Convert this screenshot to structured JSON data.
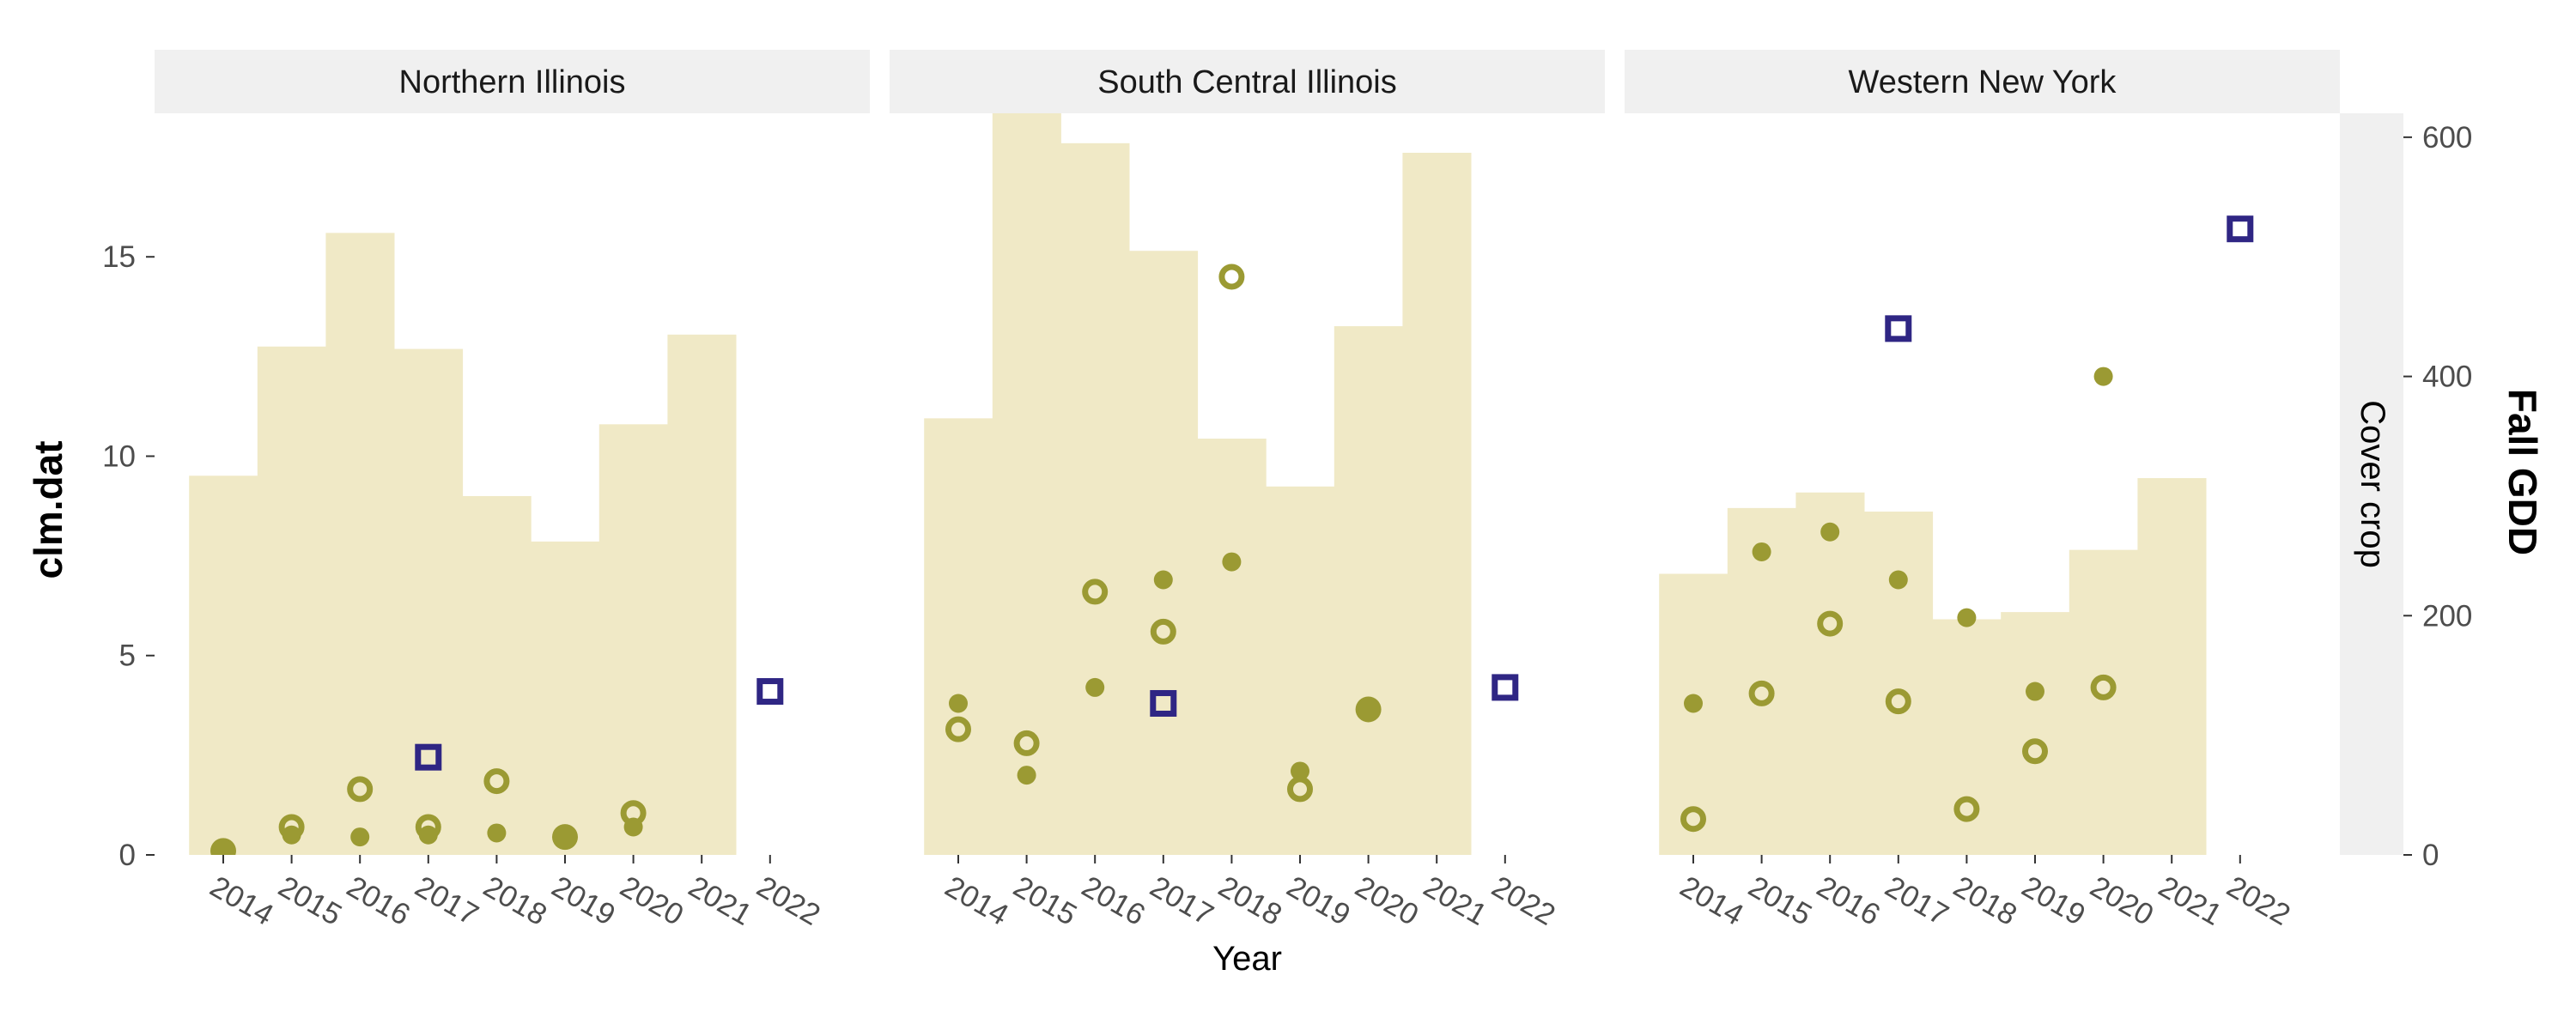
{
  "chart_data": {
    "type": "bar",
    "xlabel": "Year",
    "ylabel_left": "clm.dat",
    "ylabel_right": "Fall GDD",
    "facet_row_label": "Cover crop",
    "years": [
      "2014",
      "2015",
      "2016",
      "2017",
      "2018",
      "2019",
      "2020",
      "2021",
      "2022"
    ],
    "ylim_left": [
      0,
      18.6
    ],
    "left_ticks": [
      0,
      5,
      10,
      15
    ],
    "right_ticks": [
      0,
      200,
      400,
      600
    ],
    "right_to_left_ratio": 0.03,
    "colors": {
      "bars": "#f0e9c6",
      "olive": "#9b9a33",
      "navy": "#2f2684",
      "strip": "#f0f0f0"
    },
    "panels": [
      {
        "title": "Northern Illinois",
        "gdd_bars": [
          {
            "year": "2014",
            "value": 317
          },
          {
            "year": "2015",
            "value": 425
          },
          {
            "year": "2016",
            "value": 520
          },
          {
            "year": "2017",
            "value": 423
          },
          {
            "year": "2018",
            "value": 300
          },
          {
            "year": "2019",
            "value": 262
          },
          {
            "year": "2020",
            "value": 360
          },
          {
            "year": "2021",
            "value": 435
          }
        ],
        "points": [
          {
            "year": "2014",
            "value": 0.1,
            "style": "filled",
            "size": "large"
          },
          {
            "year": "2015",
            "value": 0.7,
            "style": "ring"
          },
          {
            "year": "2015",
            "value": 0.5,
            "style": "filled",
            "size": "small"
          },
          {
            "year": "2016",
            "value": 1.65,
            "style": "ring"
          },
          {
            "year": "2016",
            "value": 0.45,
            "style": "filled",
            "size": "small"
          },
          {
            "year": "2017",
            "value": 2.45,
            "style": "square"
          },
          {
            "year": "2017",
            "value": 0.7,
            "style": "ring"
          },
          {
            "year": "2017",
            "value": 0.5,
            "style": "filled",
            "size": "small"
          },
          {
            "year": "2018",
            "value": 1.85,
            "style": "ring"
          },
          {
            "year": "2018",
            "value": 0.55,
            "style": "filled",
            "size": "small"
          },
          {
            "year": "2019",
            "value": 0.45,
            "style": "filled",
            "size": "large"
          },
          {
            "year": "2020",
            "value": 1.05,
            "style": "ring"
          },
          {
            "year": "2020",
            "value": 0.7,
            "style": "filled",
            "size": "small"
          },
          {
            "year": "2022",
            "value": 4.1,
            "style": "square"
          }
        ]
      },
      {
        "title": "South Central Illinois",
        "gdd_bars": [
          {
            "year": "2014",
            "value": 365
          },
          {
            "year": "2015",
            "value": 620
          },
          {
            "year": "2016",
            "value": 595
          },
          {
            "year": "2017",
            "value": 505
          },
          {
            "year": "2018",
            "value": 348
          },
          {
            "year": "2019",
            "value": 308
          },
          {
            "year": "2020",
            "value": 442
          },
          {
            "year": "2021",
            "value": 587
          }
        ],
        "points": [
          {
            "year": "2014",
            "value": 3.8,
            "style": "filled",
            "size": "small"
          },
          {
            "year": "2014",
            "value": 3.15,
            "style": "ring"
          },
          {
            "year": "2015",
            "value": 2.8,
            "style": "ring"
          },
          {
            "year": "2015",
            "value": 2.0,
            "style": "filled",
            "size": "small"
          },
          {
            "year": "2016",
            "value": 6.6,
            "style": "ring"
          },
          {
            "year": "2016",
            "value": 4.2,
            "style": "filled",
            "size": "small"
          },
          {
            "year": "2017",
            "value": 6.9,
            "style": "filled",
            "size": "small"
          },
          {
            "year": "2017",
            "value": 5.6,
            "style": "ring"
          },
          {
            "year": "2017",
            "value": 3.8,
            "style": "square"
          },
          {
            "year": "2018",
            "value": 14.5,
            "style": "ring"
          },
          {
            "year": "2018",
            "value": 7.35,
            "style": "filled",
            "size": "small"
          },
          {
            "year": "2019",
            "value": 2.1,
            "style": "filled",
            "size": "small"
          },
          {
            "year": "2019",
            "value": 1.65,
            "style": "ring"
          },
          {
            "year": "2020",
            "value": 3.65,
            "style": "filled",
            "size": "large"
          },
          {
            "year": "2022",
            "value": 4.2,
            "style": "square"
          }
        ]
      },
      {
        "title": "Western New York",
        "gdd_bars": [
          {
            "year": "2014",
            "value": 235
          },
          {
            "year": "2015",
            "value": 290
          },
          {
            "year": "2016",
            "value": 303
          },
          {
            "year": "2017",
            "value": 287
          },
          {
            "year": "2018",
            "value": 197
          },
          {
            "year": "2019",
            "value": 203
          },
          {
            "year": "2020",
            "value": 255
          },
          {
            "year": "2021",
            "value": 315
          }
        ],
        "points": [
          {
            "year": "2014",
            "value": 3.8,
            "style": "filled",
            "size": "small"
          },
          {
            "year": "2014",
            "value": 0.9,
            "style": "ring"
          },
          {
            "year": "2015",
            "value": 7.6,
            "style": "filled",
            "size": "small"
          },
          {
            "year": "2015",
            "value": 4.05,
            "style": "ring"
          },
          {
            "year": "2016",
            "value": 8.1,
            "style": "filled",
            "size": "small"
          },
          {
            "year": "2016",
            "value": 5.8,
            "style": "ring"
          },
          {
            "year": "2017",
            "value": 13.2,
            "style": "square"
          },
          {
            "year": "2017",
            "value": 6.9,
            "style": "filled",
            "size": "small"
          },
          {
            "year": "2017",
            "value": 3.85,
            "style": "ring"
          },
          {
            "year": "2018",
            "value": 5.95,
            "style": "filled",
            "size": "small"
          },
          {
            "year": "2018",
            "value": 1.15,
            "style": "ring"
          },
          {
            "year": "2019",
            "value": 4.1,
            "style": "filled",
            "size": "small"
          },
          {
            "year": "2019",
            "value": 2.6,
            "style": "ring"
          },
          {
            "year": "2020",
            "value": 12.0,
            "style": "filled",
            "size": "small"
          },
          {
            "year": "2020",
            "value": 4.2,
            "style": "ring"
          },
          {
            "year": "2022",
            "value": 15.7,
            "style": "square"
          }
        ]
      }
    ]
  }
}
